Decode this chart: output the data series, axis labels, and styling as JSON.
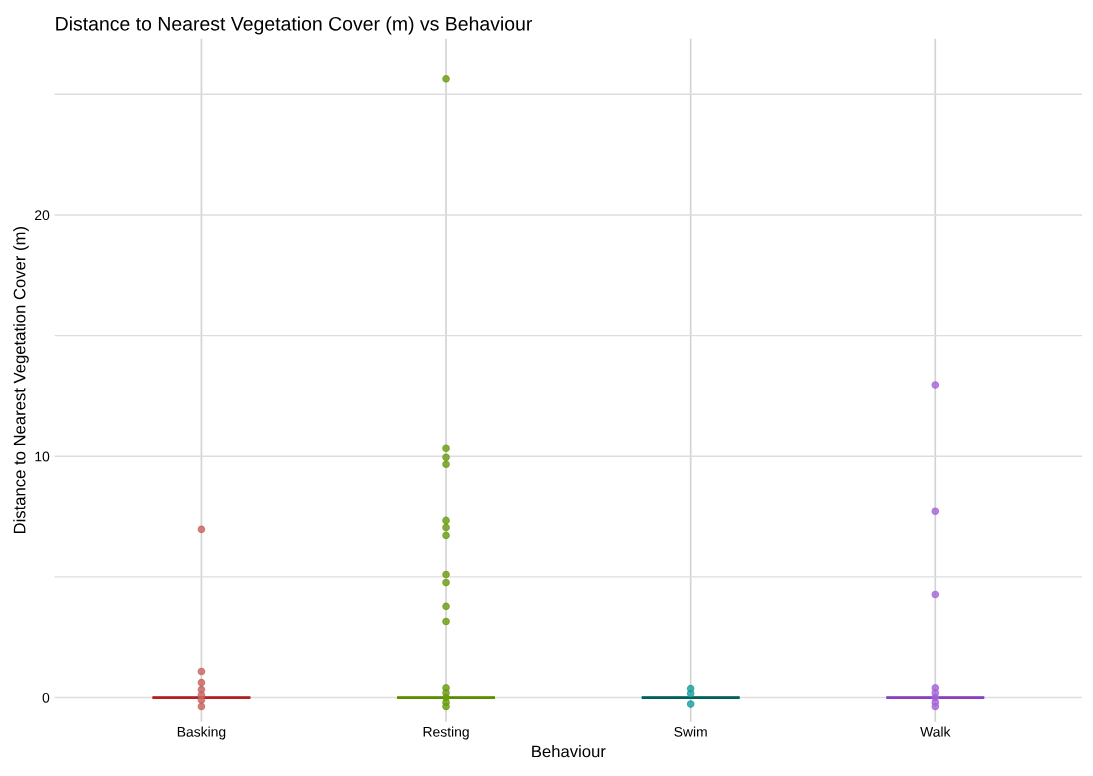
{
  "chart_data": {
    "type": "scatter",
    "title": "Distance to Nearest Vegetation Cover (m) vs Behaviour",
    "xlabel": "Behaviour",
    "ylabel": "Distance to Nearest Vegetation Cover (m)",
    "categories": [
      "Basking",
      "Resting",
      "Swim",
      "Walk"
    ],
    "ylim": [
      -1,
      27.3
    ],
    "yticks": [
      0,
      {
        "value": 5,
        "label": null
      },
      10,
      {
        "value": 15,
        "label": null
      },
      20,
      {
        "value": 25,
        "label": null
      }
    ],
    "grid": true,
    "marker": "circle",
    "series": [
      {
        "type": "box",
        "colors": [
          "#b22222",
          "#5c8c00",
          "#005f5f",
          "#8a3fc0"
        ],
        "boxes": [
          {
            "low": 0,
            "q1": 0,
            "median": 0,
            "q3": 0,
            "high": 0
          },
          {
            "low": 0,
            "q1": 0,
            "median": 0,
            "q3": 0,
            "high": 0
          },
          {
            "low": 0,
            "q1": 0,
            "median": 0,
            "q3": 0,
            "high": 0
          },
          {
            "low": 0,
            "q1": 0,
            "median": 0,
            "q3": 0,
            "high": 0
          }
        ]
      },
      {
        "color": "#c8625c",
        "x": [
          "Basking",
          "Basking",
          "Basking",
          "Basking",
          "Basking",
          "Basking",
          "Basking"
        ],
        "values": [
          6.97,
          1.08,
          0.62,
          0.33,
          0.1,
          -0.1,
          -0.37
        ]
      },
      {
        "color": "#6a9c10",
        "x": [
          "Resting",
          "Resting",
          "Resting",
          "Resting",
          "Resting",
          "Resting",
          "Resting",
          "Resting",
          "Resting",
          "Resting",
          "Resting",
          "Resting",
          "Resting",
          "Resting",
          "Resting",
          "Resting"
        ],
        "values": [
          25.64,
          10.33,
          9.96,
          9.67,
          7.34,
          7.05,
          6.72,
          5.1,
          4.77,
          3.78,
          3.15,
          0.4,
          0.2,
          0.0,
          -0.2,
          -0.37
        ]
      },
      {
        "color": "#1a9e9e",
        "x": [
          "Swim",
          "Swim",
          "Swim"
        ],
        "values": [
          0.37,
          0.17,
          -0.27
        ]
      },
      {
        "color": "#a564d8",
        "x": [
          "Walk",
          "Walk",
          "Walk",
          "Walk",
          "Walk",
          "Walk",
          "Walk",
          "Walk"
        ],
        "values": [
          12.95,
          7.72,
          4.27,
          0.4,
          0.2,
          0.0,
          -0.2,
          -0.37
        ]
      }
    ]
  }
}
